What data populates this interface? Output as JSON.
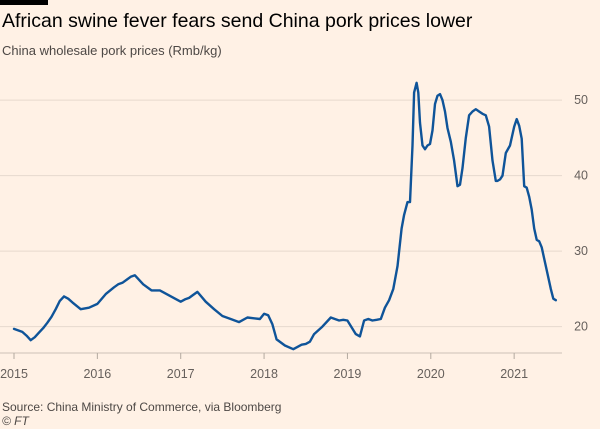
{
  "title": "African swine fever fears send China pork prices lower",
  "subtitle": "China wholesale pork prices (Rmb/kg)",
  "source": "Source: China Ministry of Commerce, via Bloomberg",
  "credit": "© FT",
  "colors": {
    "background": "#fff1e5",
    "line": "#0f5499",
    "grid": "#e6d9ce"
  },
  "chart_data": {
    "type": "line",
    "title": "African swine fever fears send China pork prices lower",
    "subtitle": "China wholesale pork prices (Rmb/kg)",
    "xlabel": "",
    "ylabel": "",
    "xlim": [
      2015,
      2021.55
    ],
    "ylim": [
      16.5,
      54
    ],
    "yaxis_position": "right",
    "grid": true,
    "x_ticks": [
      2015,
      2016,
      2017,
      2018,
      2019,
      2020,
      2021
    ],
    "x_tick_labels": [
      "2015",
      "2016",
      "2017",
      "2018",
      "2019",
      "2020",
      "2021"
    ],
    "y_ticks": [
      20,
      30,
      40,
      50
    ],
    "y_tick_labels": [
      "20",
      "30",
      "40",
      "50"
    ],
    "series": [
      {
        "x": [
          2015.0,
          2015.1,
          2015.15,
          2015.2,
          2015.25,
          2015.3,
          2015.35,
          2015.4,
          2015.45,
          2015.5,
          2015.55,
          2015.6,
          2015.65,
          2015.7,
          2015.8,
          2015.9,
          2016.0,
          2016.1,
          2016.2,
          2016.25,
          2016.3,
          2016.4,
          2016.45,
          2016.55,
          2016.65,
          2016.75,
          2016.85,
          2016.95,
          2017.0,
          2017.05,
          2017.1,
          2017.15,
          2017.2,
          2017.3,
          2017.4,
          2017.5,
          2017.6,
          2017.7,
          2017.8,
          2017.95,
          2018.0,
          2018.05,
          2018.1,
          2018.15,
          2018.25,
          2018.35,
          2018.45,
          2018.5,
          2018.55,
          2018.6,
          2018.7,
          2018.8,
          2018.85,
          2018.9,
          2018.95,
          2019.0,
          2019.1,
          2019.15,
          2019.2,
          2019.25,
          2019.3,
          2019.35,
          2019.4,
          2019.45,
          2019.5,
          2019.55,
          2019.6,
          2019.65,
          2019.68,
          2019.72,
          2019.75,
          2019.78,
          2019.8,
          2019.83,
          2019.85,
          2019.87,
          2019.9,
          2019.93,
          2019.96,
          2019.99,
          2020.02,
          2020.05,
          2020.08,
          2020.11,
          2020.14,
          2020.17,
          2020.2,
          2020.24,
          2020.28,
          2020.32,
          2020.35,
          2020.38,
          2020.42,
          2020.46,
          2020.5,
          2020.54,
          2020.58,
          2020.62,
          2020.66,
          2020.7,
          2020.74,
          2020.78,
          2020.8,
          2020.83,
          2020.86,
          2020.9,
          2020.95,
          2021.0,
          2021.03,
          2021.06,
          2021.09,
          2021.12,
          2021.15,
          2021.18,
          2021.21,
          2021.24,
          2021.27,
          2021.3,
          2021.33,
          2021.36,
          2021.4,
          2021.44,
          2021.47,
          2021.5
        ],
        "values": [
          19.7,
          19.3,
          18.8,
          18.2,
          18.6,
          19.2,
          19.8,
          20.5,
          21.3,
          22.3,
          23.4,
          24.0,
          23.7,
          23.2,
          22.3,
          22.5,
          23.0,
          24.3,
          25.2,
          25.6,
          25.8,
          26.6,
          26.8,
          25.6,
          24.8,
          24.8,
          24.2,
          23.6,
          23.3,
          23.6,
          23.8,
          24.2,
          24.6,
          23.3,
          22.3,
          21.4,
          21.0,
          20.6,
          21.2,
          21.0,
          21.7,
          21.5,
          20.3,
          18.3,
          17.5,
          17.0,
          17.6,
          17.7,
          18.0,
          19.0,
          20.0,
          21.2,
          21.0,
          20.8,
          20.9,
          20.8,
          19.0,
          18.7,
          20.8,
          21.0,
          20.8,
          20.9,
          21.0,
          22.5,
          23.5,
          25.0,
          28.0,
          33.0,
          34.8,
          36.5,
          36.5,
          44.0,
          51.0,
          52.3,
          51.0,
          47.0,
          44.0,
          43.5,
          44.0,
          44.2,
          46.0,
          49.5,
          50.6,
          50.8,
          50.0,
          48.5,
          46.3,
          44.5,
          42.0,
          38.6,
          38.8,
          41.0,
          45.0,
          48.0,
          48.5,
          48.8,
          48.5,
          48.2,
          48.0,
          46.5,
          42.0,
          39.3,
          39.3,
          39.5,
          40.0,
          43.0,
          44.0,
          46.5,
          47.5,
          46.6,
          44.9,
          38.6,
          38.4,
          37.2,
          35.5,
          33.0,
          31.5,
          31.3,
          30.5,
          29.0,
          27.0,
          25.0,
          23.7,
          23.5
        ]
      }
    ]
  }
}
